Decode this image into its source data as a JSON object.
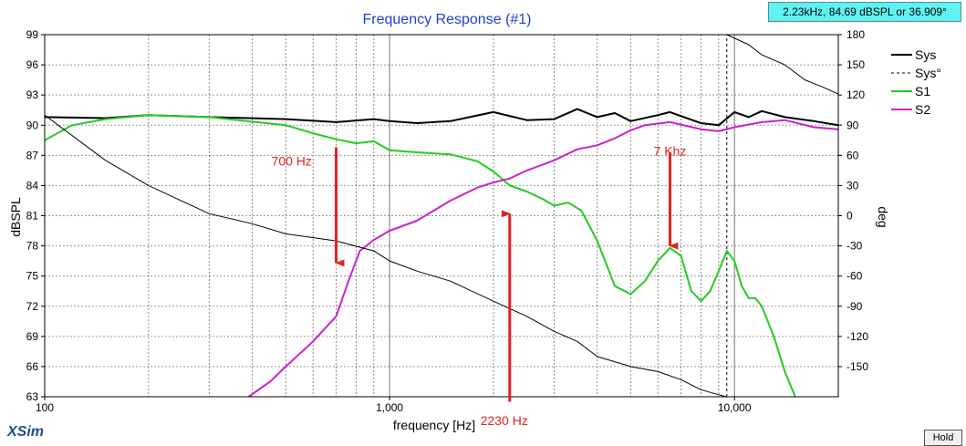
{
  "app": {
    "brand": "XSim"
  },
  "readout": {
    "text": "2.23kHz, 84.69 dBSPL or 36.909°"
  },
  "controls": {
    "hold_label": "Hold"
  },
  "chart_data": {
    "type": "line",
    "title": "Frequency Response (#1)",
    "xlabel": "frequency [Hz]",
    "ylabel": "dBSPL",
    "y2label": "deg",
    "x_scale": "log",
    "xlim": [
      100,
      20000
    ],
    "ylim": [
      63,
      99
    ],
    "y2lim": [
      -180,
      180
    ],
    "grid": true,
    "legend_position": "right",
    "x_ticks": [
      {
        "value": 100,
        "label": "100"
      },
      {
        "value": 1000,
        "label": "1,000"
      },
      {
        "value": 10000,
        "label": "10,000"
      }
    ],
    "y_ticks": [
      63,
      66,
      69,
      72,
      75,
      78,
      81,
      84,
      87,
      90,
      93,
      96,
      99
    ],
    "y2_ticks": [
      -150,
      -120,
      -90,
      -60,
      -30,
      0,
      30,
      60,
      90,
      120,
      150,
      180
    ],
    "series": [
      {
        "name": "Sys",
        "axis": "left",
        "color": "#000000",
        "width": 2,
        "dash": "",
        "points": [
          [
            100,
            90.8
          ],
          [
            150,
            90.7
          ],
          [
            200,
            91.0
          ],
          [
            300,
            90.8
          ],
          [
            500,
            90.6
          ],
          [
            700,
            90.3
          ],
          [
            900,
            90.6
          ],
          [
            1000,
            90.4
          ],
          [
            1200,
            90.2
          ],
          [
            1500,
            90.4
          ],
          [
            2000,
            91.3
          ],
          [
            2500,
            90.5
          ],
          [
            3000,
            90.6
          ],
          [
            3500,
            91.6
          ],
          [
            4000,
            90.8
          ],
          [
            4500,
            91.2
          ],
          [
            5000,
            90.4
          ],
          [
            6000,
            91.0
          ],
          [
            6500,
            91.3
          ],
          [
            7000,
            90.9
          ],
          [
            8000,
            90.2
          ],
          [
            9000,
            90.0
          ],
          [
            10000,
            91.3
          ],
          [
            11000,
            90.8
          ],
          [
            12000,
            91.4
          ],
          [
            14000,
            90.8
          ],
          [
            17000,
            90.4
          ],
          [
            20000,
            90.0
          ]
        ]
      },
      {
        "name": "Sys°",
        "axis": "right",
        "color": "#000000",
        "width": 1,
        "dash": "3,3",
        "points": [
          [
            9500,
            -180
          ],
          [
            9500,
            180
          ]
        ]
      },
      {
        "name": "S1",
        "axis": "left",
        "color": "#22cc22",
        "width": 2,
        "dash": "",
        "points": [
          [
            100,
            88.5
          ],
          [
            120,
            90.0
          ],
          [
            150,
            90.6
          ],
          [
            200,
            91.0
          ],
          [
            300,
            90.8
          ],
          [
            500,
            90.0
          ],
          [
            600,
            89.2
          ],
          [
            700,
            88.6
          ],
          [
            800,
            88.2
          ],
          [
            900,
            88.4
          ],
          [
            1000,
            87.5
          ],
          [
            1200,
            87.3
          ],
          [
            1500,
            87.1
          ],
          [
            1800,
            86.4
          ],
          [
            2000,
            85.4
          ],
          [
            2230,
            84.0
          ],
          [
            2500,
            83.4
          ],
          [
            2800,
            82.6
          ],
          [
            3000,
            82.0
          ],
          [
            3300,
            82.3
          ],
          [
            3600,
            81.5
          ],
          [
            4000,
            78.5
          ],
          [
            4500,
            74.0
          ],
          [
            5000,
            73.2
          ],
          [
            5500,
            74.5
          ],
          [
            6000,
            76.5
          ],
          [
            6500,
            77.8
          ],
          [
            7000,
            77.0
          ],
          [
            7500,
            73.5
          ],
          [
            8000,
            72.5
          ],
          [
            8500,
            73.5
          ],
          [
            9000,
            75.5
          ],
          [
            9500,
            77.5
          ],
          [
            10000,
            76.5
          ],
          [
            10500,
            74.0
          ],
          [
            11000,
            72.8
          ],
          [
            11500,
            72.8
          ],
          [
            12000,
            72.0
          ],
          [
            13000,
            69.0
          ],
          [
            14000,
            65.5
          ],
          [
            15000,
            63.0
          ]
        ]
      },
      {
        "name": "S2",
        "axis": "left",
        "color": "#cc22cc",
        "width": 2,
        "dash": "",
        "points": [
          [
            390,
            63.0
          ],
          [
            450,
            64.5
          ],
          [
            500,
            66.0
          ],
          [
            600,
            68.5
          ],
          [
            700,
            71.0
          ],
          [
            760,
            74.5
          ],
          [
            820,
            77.5
          ],
          [
            900,
            78.6
          ],
          [
            1000,
            79.5
          ],
          [
            1200,
            80.5
          ],
          [
            1500,
            82.5
          ],
          [
            1800,
            83.8
          ],
          [
            2000,
            84.3
          ],
          [
            2230,
            84.7
          ],
          [
            2500,
            85.5
          ],
          [
            3000,
            86.5
          ],
          [
            3500,
            87.6
          ],
          [
            4000,
            88.0
          ],
          [
            4500,
            88.7
          ],
          [
            5000,
            89.5
          ],
          [
            5500,
            90.0
          ],
          [
            6500,
            90.3
          ],
          [
            8000,
            89.6
          ],
          [
            9000,
            89.4
          ],
          [
            10000,
            89.8
          ],
          [
            12000,
            90.3
          ],
          [
            14000,
            90.5
          ],
          [
            17000,
            89.8
          ],
          [
            20000,
            89.6
          ]
        ]
      },
      {
        "name": "",
        "axis": "right",
        "color": "#000000",
        "width": 1,
        "dash": "",
        "points": [
          [
            100,
            100
          ],
          [
            150,
            55
          ],
          [
            200,
            30
          ],
          [
            300,
            2
          ],
          [
            400,
            -8
          ],
          [
            500,
            -18
          ],
          [
            700,
            -25
          ],
          [
            900,
            -35
          ],
          [
            1000,
            -45
          ],
          [
            1200,
            -55
          ],
          [
            1500,
            -65
          ],
          [
            2000,
            -85
          ],
          [
            2500,
            -100
          ],
          [
            3000,
            -115
          ],
          [
            3500,
            -125
          ],
          [
            4000,
            -140
          ],
          [
            5000,
            -150
          ],
          [
            6000,
            -155
          ],
          [
            7000,
            -163
          ],
          [
            8000,
            -173
          ],
          [
            9000,
            -178
          ],
          [
            9500,
            -180
          ]
        ]
      },
      {
        "name": "",
        "axis": "right",
        "color": "#000000",
        "width": 1,
        "dash": "",
        "points": [
          [
            9500,
            180
          ],
          [
            11000,
            170
          ],
          [
            12000,
            160
          ],
          [
            14000,
            150
          ],
          [
            16000,
            135
          ],
          [
            18000,
            128
          ],
          [
            20000,
            121
          ]
        ]
      }
    ],
    "annotations": [
      {
        "label": "700 Hz",
        "text_x": 520,
        "text_y": 86.0,
        "from": [
          700,
          87.8
        ],
        "to": [
          700,
          76.3
        ]
      },
      {
        "label": "2230 Hz",
        "text_x": 2150,
        "text_y": 60.2,
        "from": [
          2230,
          62.5
        ],
        "to": [
          2230,
          81.2
        ]
      },
      {
        "label": "7 Khz",
        "text_x": 6500,
        "text_y": 87.0,
        "from": [
          6500,
          87.3
        ],
        "to": [
          6500,
          78.0
        ]
      }
    ]
  }
}
